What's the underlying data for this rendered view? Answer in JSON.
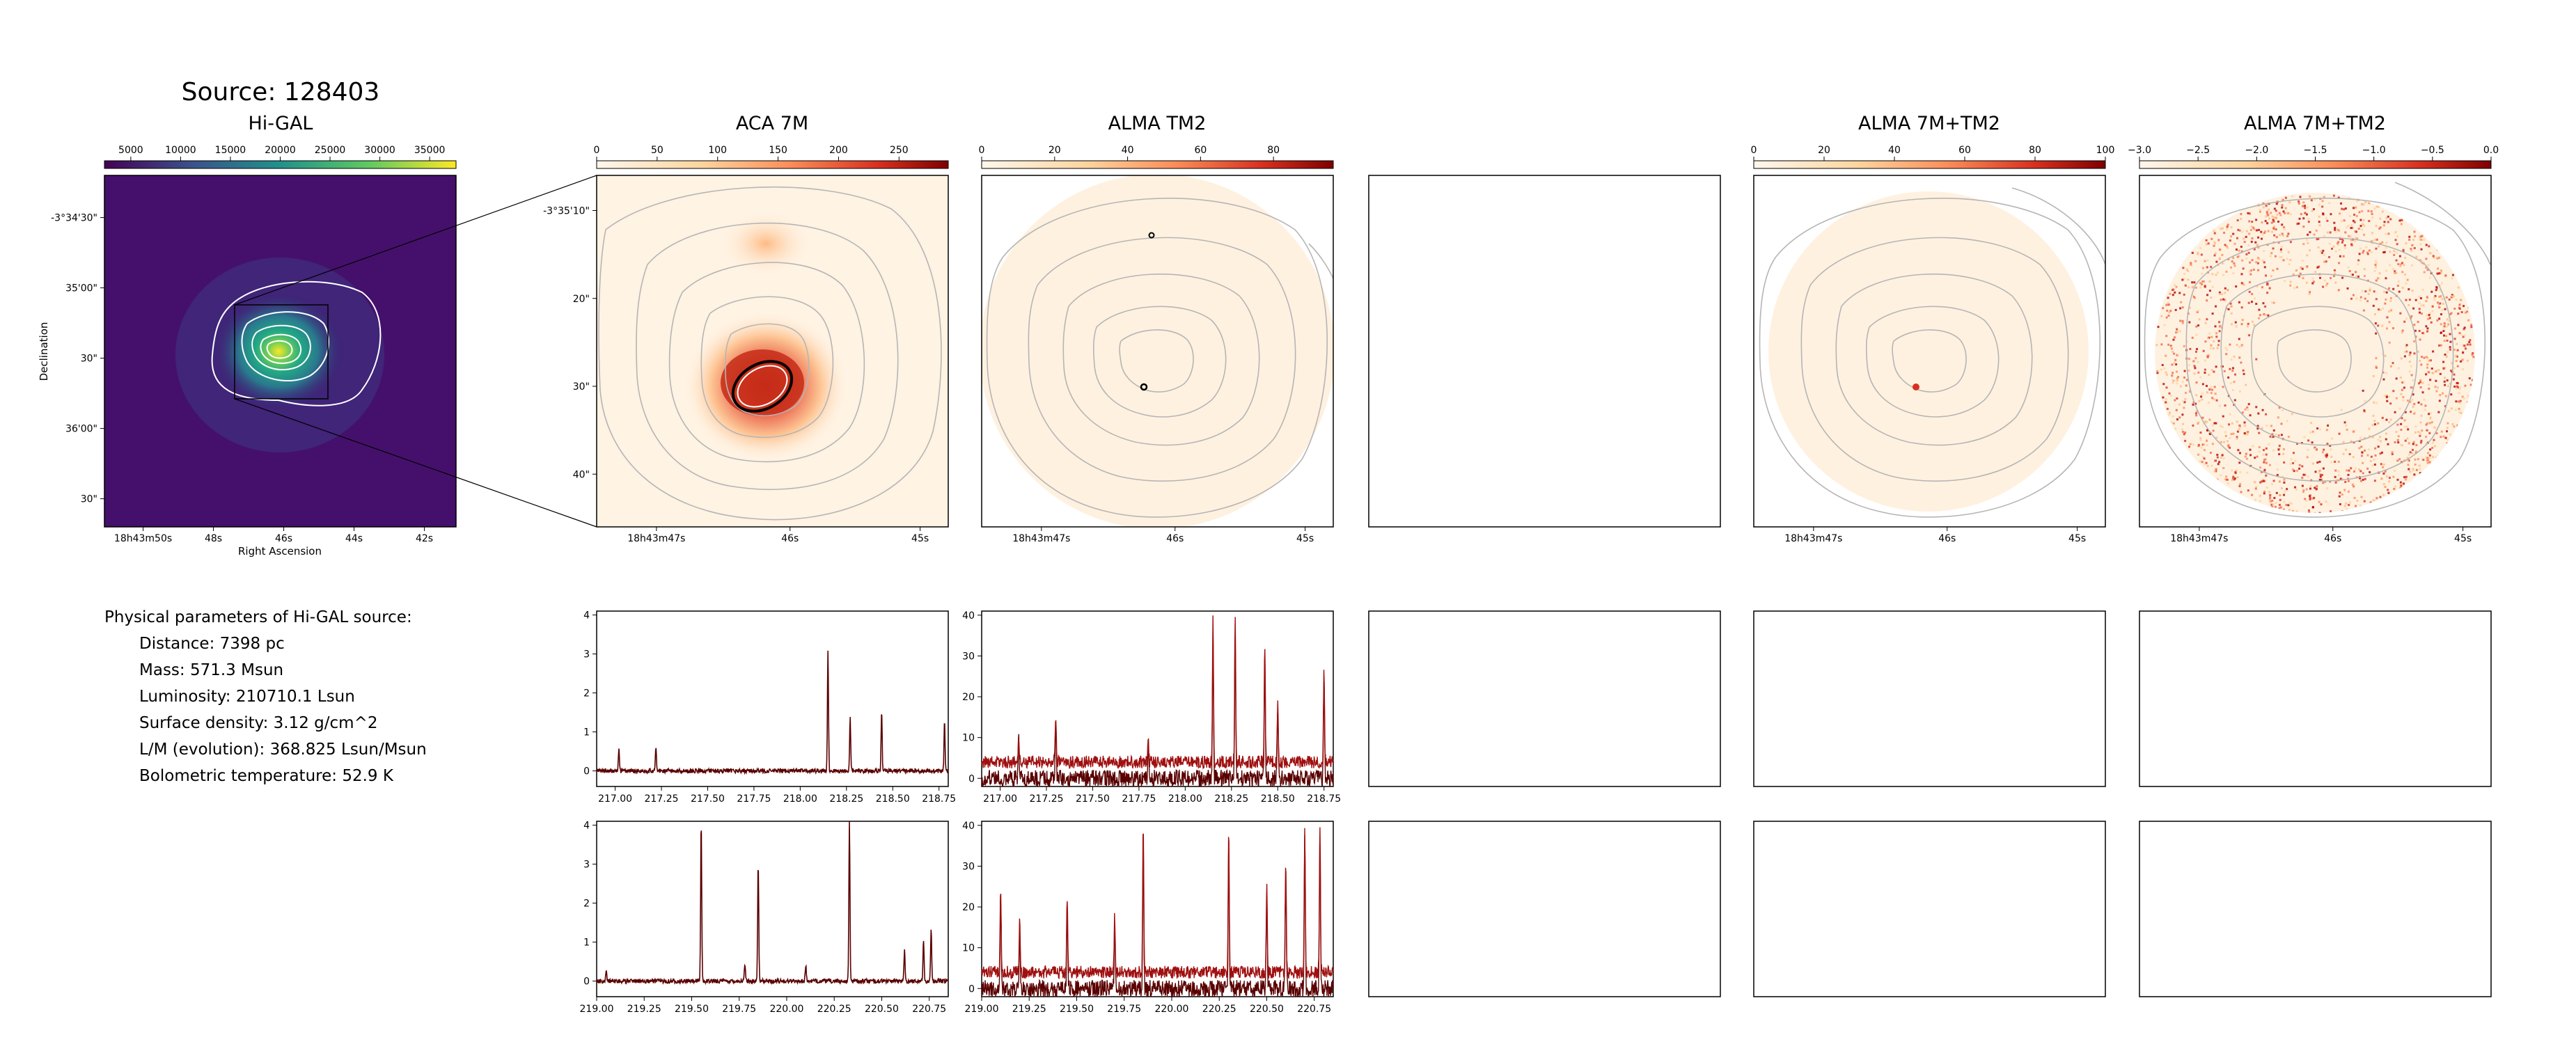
{
  "title": "Source: 128403",
  "colors": {
    "spectrum": "#a01010",
    "spectrum_dark": "#5a0000",
    "contour_grey": "#a8a8a8",
    "panel_border": "#000000"
  },
  "panels": {
    "higal": {
      "title": "Hi-GAL",
      "colorbar_ticks": [
        "5000",
        "10000",
        "15000",
        "20000",
        "25000",
        "30000",
        "35000"
      ],
      "colormap": "viridis",
      "xticks": [
        "18h43m50s",
        "48s",
        "46s",
        "44s",
        "42s"
      ],
      "yticks": [
        "-3°34'30\"",
        "35'00\"",
        "30\"",
        "36'00\"",
        "30\""
      ],
      "xlabel": "Right Ascension",
      "ylabel": "Declination"
    },
    "aca7m": {
      "title": "ACA 7M",
      "colorbar_ticks": [
        "0",
        "50",
        "100",
        "150",
        "200",
        "250"
      ],
      "colormap": "OrRd",
      "xticks": [
        "18h43m47s",
        "46s",
        "45s"
      ],
      "yticks": [
        "-3°35'10\"",
        "20\"",
        "30\"",
        "40\""
      ]
    },
    "tm2": {
      "title": "ALMA TM2",
      "colorbar_ticks": [
        "0",
        "20",
        "40",
        "60",
        "80"
      ],
      "colormap": "OrRd",
      "xticks": [
        "18h43m47s",
        "46s",
        "45s"
      ]
    },
    "combined": {
      "title": "ALMA 7M+TM2",
      "colorbar_ticks": [
        "0",
        "20",
        "40",
        "60",
        "80",
        "100"
      ],
      "colormap": "OrRd",
      "xticks": [
        "18h43m47s",
        "46s",
        "45s"
      ]
    },
    "combined_log": {
      "title": "ALMA 7M+TM2",
      "colorbar_ticks": [
        "−3.0",
        "−2.5",
        "−2.0",
        "−1.5",
        "−1.0",
        "−0.5",
        "0.0"
      ],
      "colormap": "OrRd",
      "xticks": [
        "18h43m47s",
        "46s",
        "45s"
      ]
    }
  },
  "physical_parameters": {
    "heading": "Physical parameters of Hi-GAL source:",
    "lines": [
      "Distance: 7398 pc",
      "Mass: 571.3 Msun",
      "Luminosity: 210710.1 Lsun",
      "Surface density: 3.12 g/cm^2",
      "L/M (evolution): 368.825 Lsun/Msun",
      "Bolometric temperature: 52.9 K"
    ]
  },
  "chart_data": [
    {
      "type": "line",
      "name": "aca_spw1",
      "xlim": [
        216.9,
        218.8
      ],
      "ylim": [
        -0.4,
        4.1
      ],
      "xticks": [
        "217.00",
        "217.25",
        "217.50",
        "217.75",
        "218.00",
        "218.25",
        "218.50",
        "218.75"
      ],
      "yticks": [
        "0",
        "1",
        "2",
        "3",
        "4"
      ],
      "baseline": 0,
      "peaks": [
        [
          217.02,
          0.55
        ],
        [
          217.22,
          0.6
        ],
        [
          218.15,
          3.05
        ],
        [
          218.27,
          1.35
        ],
        [
          218.44,
          1.5
        ],
        [
          218.78,
          1.3
        ]
      ]
    },
    {
      "type": "line",
      "name": "tm2_spw1",
      "xlim": [
        216.9,
        218.8
      ],
      "ylim": [
        -2,
        41
      ],
      "xticks": [
        "217.00",
        "217.25",
        "217.50",
        "217.75",
        "218.00",
        "218.25",
        "218.50",
        "218.75"
      ],
      "yticks": [
        "0",
        "10",
        "20",
        "30",
        "40"
      ],
      "baseline": 4,
      "peaks": [
        [
          217.1,
          10
        ],
        [
          217.3,
          16
        ],
        [
          217.8,
          9
        ],
        [
          218.15,
          39
        ],
        [
          218.27,
          40
        ],
        [
          218.43,
          33
        ],
        [
          218.5,
          20
        ],
        [
          218.75,
          27
        ]
      ]
    },
    {
      "type": "line",
      "name": "aca_spw2",
      "xlim": [
        219.0,
        220.85
      ],
      "ylim": [
        -0.4,
        4.1
      ],
      "xticks": [
        "219.00",
        "219.25",
        "219.50",
        "219.75",
        "220.00",
        "220.25",
        "220.50",
        "220.75"
      ],
      "yticks": [
        "0",
        "1",
        "2",
        "3",
        "4"
      ],
      "baseline": 0,
      "peaks": [
        [
          219.05,
          0.3
        ],
        [
          219.55,
          4.1
        ],
        [
          219.78,
          0.45
        ],
        [
          219.85,
          3.05
        ],
        [
          220.1,
          0.4
        ],
        [
          220.33,
          4.1
        ],
        [
          220.62,
          0.8
        ],
        [
          220.72,
          1.05
        ],
        [
          220.76,
          1.3
        ]
      ]
    },
    {
      "type": "line",
      "name": "tm2_spw2",
      "xlim": [
        219.0,
        220.85
      ],
      "ylim": [
        -2,
        41
      ],
      "xticks": [
        "219.00",
        "219.25",
        "219.50",
        "219.75",
        "220.00",
        "220.25",
        "220.50",
        "220.75"
      ],
      "yticks": [
        "0",
        "10",
        "20",
        "30",
        "40"
      ],
      "baseline": 4,
      "peaks": [
        [
          219.1,
          25
        ],
        [
          219.2,
          16
        ],
        [
          219.45,
          22
        ],
        [
          219.7,
          18
        ],
        [
          219.85,
          40
        ],
        [
          220.3,
          38
        ],
        [
          220.5,
          25
        ],
        [
          220.6,
          31
        ],
        [
          220.7,
          40
        ],
        [
          220.78,
          40
        ]
      ]
    }
  ]
}
